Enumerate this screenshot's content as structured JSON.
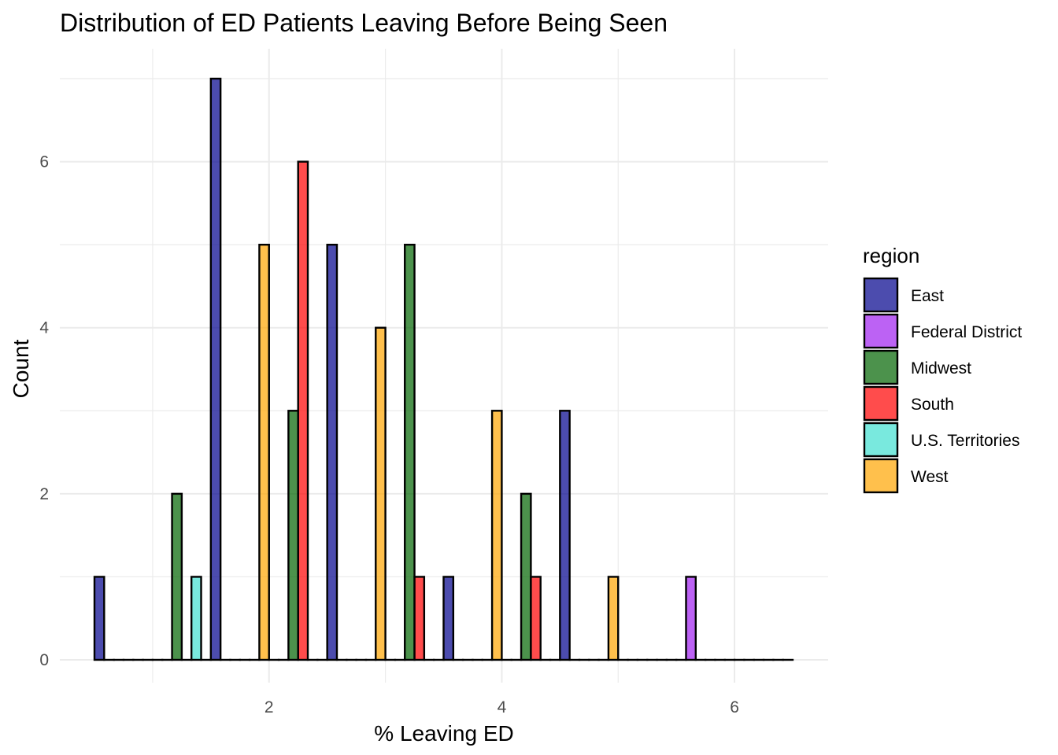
{
  "chart_data": {
    "type": "bar",
    "title": "Distribution of ED Patients Leaving Before Being Seen",
    "xlabel": "% Leaving ED",
    "ylabel": "Count",
    "xlim": [
      0.5,
      6.5
    ],
    "ylim": [
      0,
      7
    ],
    "x_ticks": [
      "2",
      "4",
      "6"
    ],
    "y_ticks": [
      "0",
      "2",
      "4",
      "6"
    ],
    "grid": true,
    "position": "dodge",
    "bin_centers": [
      0.75,
      1.25,
      1.75,
      2.25,
      2.75,
      3.25,
      3.75,
      4.25,
      4.75,
      5.25,
      5.75,
      6.25
    ],
    "legend": {
      "title": "region",
      "placement": "right"
    },
    "series": [
      {
        "name": "East",
        "color": "#00008B",
        "values": [
          1,
          0,
          7,
          0,
          5,
          0,
          1,
          0,
          3,
          0,
          0,
          0
        ]
      },
      {
        "name": "Federal District",
        "color": "#A020F0",
        "values": [
          0,
          0,
          0,
          0,
          0,
          0,
          0,
          0,
          0,
          0,
          1,
          0
        ]
      },
      {
        "name": "Midwest",
        "color": "#006400",
        "values": [
          0,
          2,
          0,
          3,
          0,
          5,
          0,
          2,
          0,
          0,
          0,
          0
        ]
      },
      {
        "name": "South",
        "color": "#FF0000",
        "values": [
          0,
          0,
          0,
          6,
          0,
          1,
          0,
          1,
          0,
          0,
          0,
          0
        ]
      },
      {
        "name": "U.S. Territories",
        "color": "#40E0D0",
        "values": [
          0,
          1,
          0,
          0,
          0,
          0,
          0,
          0,
          0,
          0,
          0,
          0
        ]
      },
      {
        "name": "West",
        "color": "#FFA500",
        "values": [
          0,
          0,
          5,
          0,
          4,
          0,
          3,
          0,
          1,
          0,
          0,
          0
        ]
      }
    ]
  }
}
